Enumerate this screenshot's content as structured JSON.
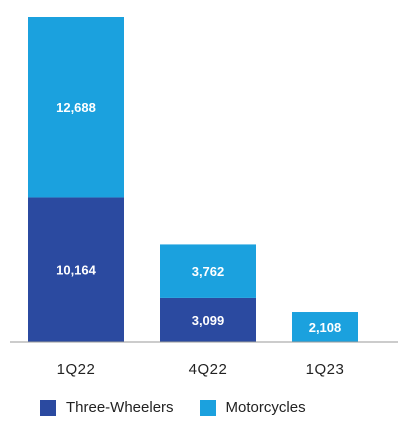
{
  "chart_data": {
    "type": "bar",
    "stacked": true,
    "categories": [
      "1Q22",
      "4Q22",
      "1Q23"
    ],
    "series": [
      {
        "name": "Three-Wheelers",
        "values": [
          10164,
          3099,
          0
        ],
        "color": "#2b4aa0"
      },
      {
        "name": "Motorcycles",
        "values": [
          12688,
          3762,
          2108
        ],
        "color": "#1ba1de"
      }
    ],
    "value_labels": [
      [
        "10,164",
        "3,099",
        ""
      ],
      [
        "12,688",
        "3,762",
        "2,108"
      ]
    ],
    "legend_position": "bottom",
    "grid": false
  }
}
